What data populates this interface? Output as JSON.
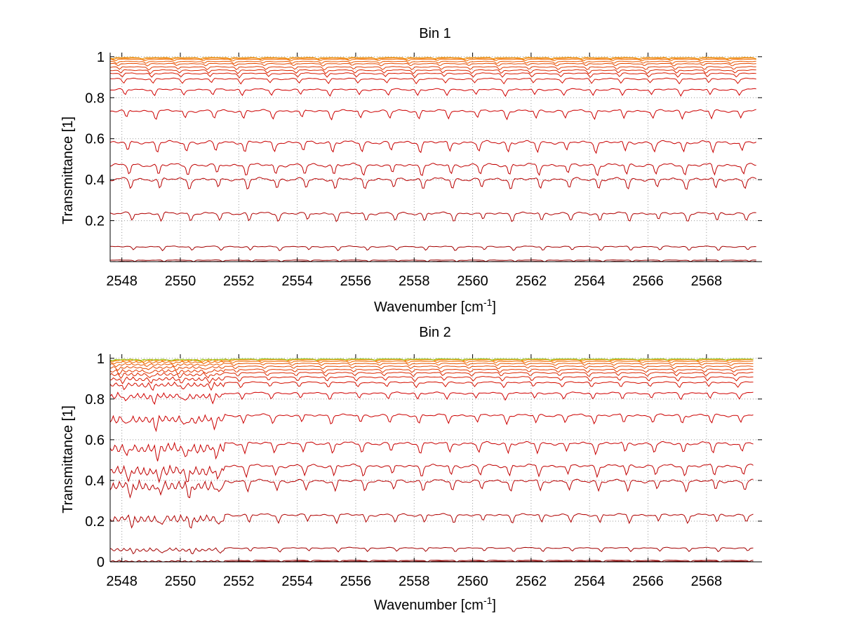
{
  "chart_data": [
    {
      "type": "line",
      "title": "Bin 1",
      "xlabel": "Wavenumber [cm",
      "xlabel_sup": "-1",
      "xlabel_end": "]",
      "ylabel": "Transmittance [1]",
      "xlim": [
        2547.6,
        2569.9
      ],
      "ylim": [
        0,
        1.02
      ],
      "xticks": [
        2548,
        2550,
        2552,
        2554,
        2556,
        2558,
        2560,
        2562,
        2564,
        2566,
        2568
      ],
      "yticks": [
        0.2,
        0.4,
        0.6,
        0.8,
        1
      ],
      "grid": true,
      "x_start": 2547.6,
      "x_end": 2569.7,
      "series": [
        {
          "level": 0.0,
          "color": "#7a0000"
        },
        {
          "level": 0.003,
          "color": "#8b0000"
        },
        {
          "level": 0.01,
          "color": "#990000"
        },
        {
          "level": 0.08,
          "color": "#a30000"
        },
        {
          "level": 0.25,
          "color": "#b00000"
        },
        {
          "level": 0.42,
          "color": "#b80000"
        },
        {
          "level": 0.49,
          "color": "#c00000"
        },
        {
          "level": 0.6,
          "color": "#c80000"
        },
        {
          "level": 0.75,
          "color": "#cc0000"
        },
        {
          "level": 0.85,
          "color": "#d00000"
        },
        {
          "level": 0.9,
          "color": "#d41000"
        },
        {
          "level": 0.925,
          "color": "#d81a00"
        },
        {
          "level": 0.94,
          "color": "#dc2800"
        },
        {
          "level": 0.955,
          "color": "#e03800"
        },
        {
          "level": 0.97,
          "color": "#e64800"
        },
        {
          "level": 0.98,
          "color": "#ea5800"
        },
        {
          "level": 0.99,
          "color": "#f06a00"
        },
        {
          "level": 0.995,
          "color": "#f47a00"
        },
        {
          "level": 0.998,
          "color": "#e89000"
        }
      ]
    },
    {
      "type": "line",
      "title": "Bin 2",
      "xlabel": "Wavenumber [cm",
      "xlabel_sup": "-1",
      "xlabel_end": "]",
      "ylabel": "Transmittance [1]",
      "xlim": [
        2547.6,
        2569.9
      ],
      "ylim": [
        0,
        1.02
      ],
      "xticks": [
        2548,
        2550,
        2552,
        2554,
        2556,
        2558,
        2560,
        2562,
        2564,
        2566,
        2568
      ],
      "yticks": [
        0,
        0.2,
        0.4,
        0.6,
        0.8,
        1
      ],
      "grid": true,
      "x_start": 2547.6,
      "x_end": 2569.6,
      "series": [
        {
          "level": 0.0,
          "color": "#7a0000"
        },
        {
          "level": 0.005,
          "color": "#8b0000"
        },
        {
          "level": 0.01,
          "color": "#990000"
        },
        {
          "level": 0.075,
          "color": "#a30000"
        },
        {
          "level": 0.245,
          "color": "#b00000"
        },
        {
          "level": 0.415,
          "color": "#b80000"
        },
        {
          "level": 0.49,
          "color": "#c00000"
        },
        {
          "level": 0.6,
          "color": "#c80000"
        },
        {
          "level": 0.735,
          "color": "#cc0000"
        },
        {
          "level": 0.84,
          "color": "#d00000"
        },
        {
          "level": 0.89,
          "color": "#d41000"
        },
        {
          "level": 0.915,
          "color": "#d81a00"
        },
        {
          "level": 0.935,
          "color": "#dc2800"
        },
        {
          "level": 0.95,
          "color": "#e03800"
        },
        {
          "level": 0.965,
          "color": "#e64800"
        },
        {
          "level": 0.978,
          "color": "#ea5800"
        },
        {
          "level": 0.988,
          "color": "#f06a00"
        },
        {
          "level": 0.995,
          "color": "#f47a00"
        },
        {
          "level": 0.998,
          "color": "#e8a000"
        },
        {
          "level": 0.999,
          "color": "#90c820"
        }
      ]
    }
  ]
}
